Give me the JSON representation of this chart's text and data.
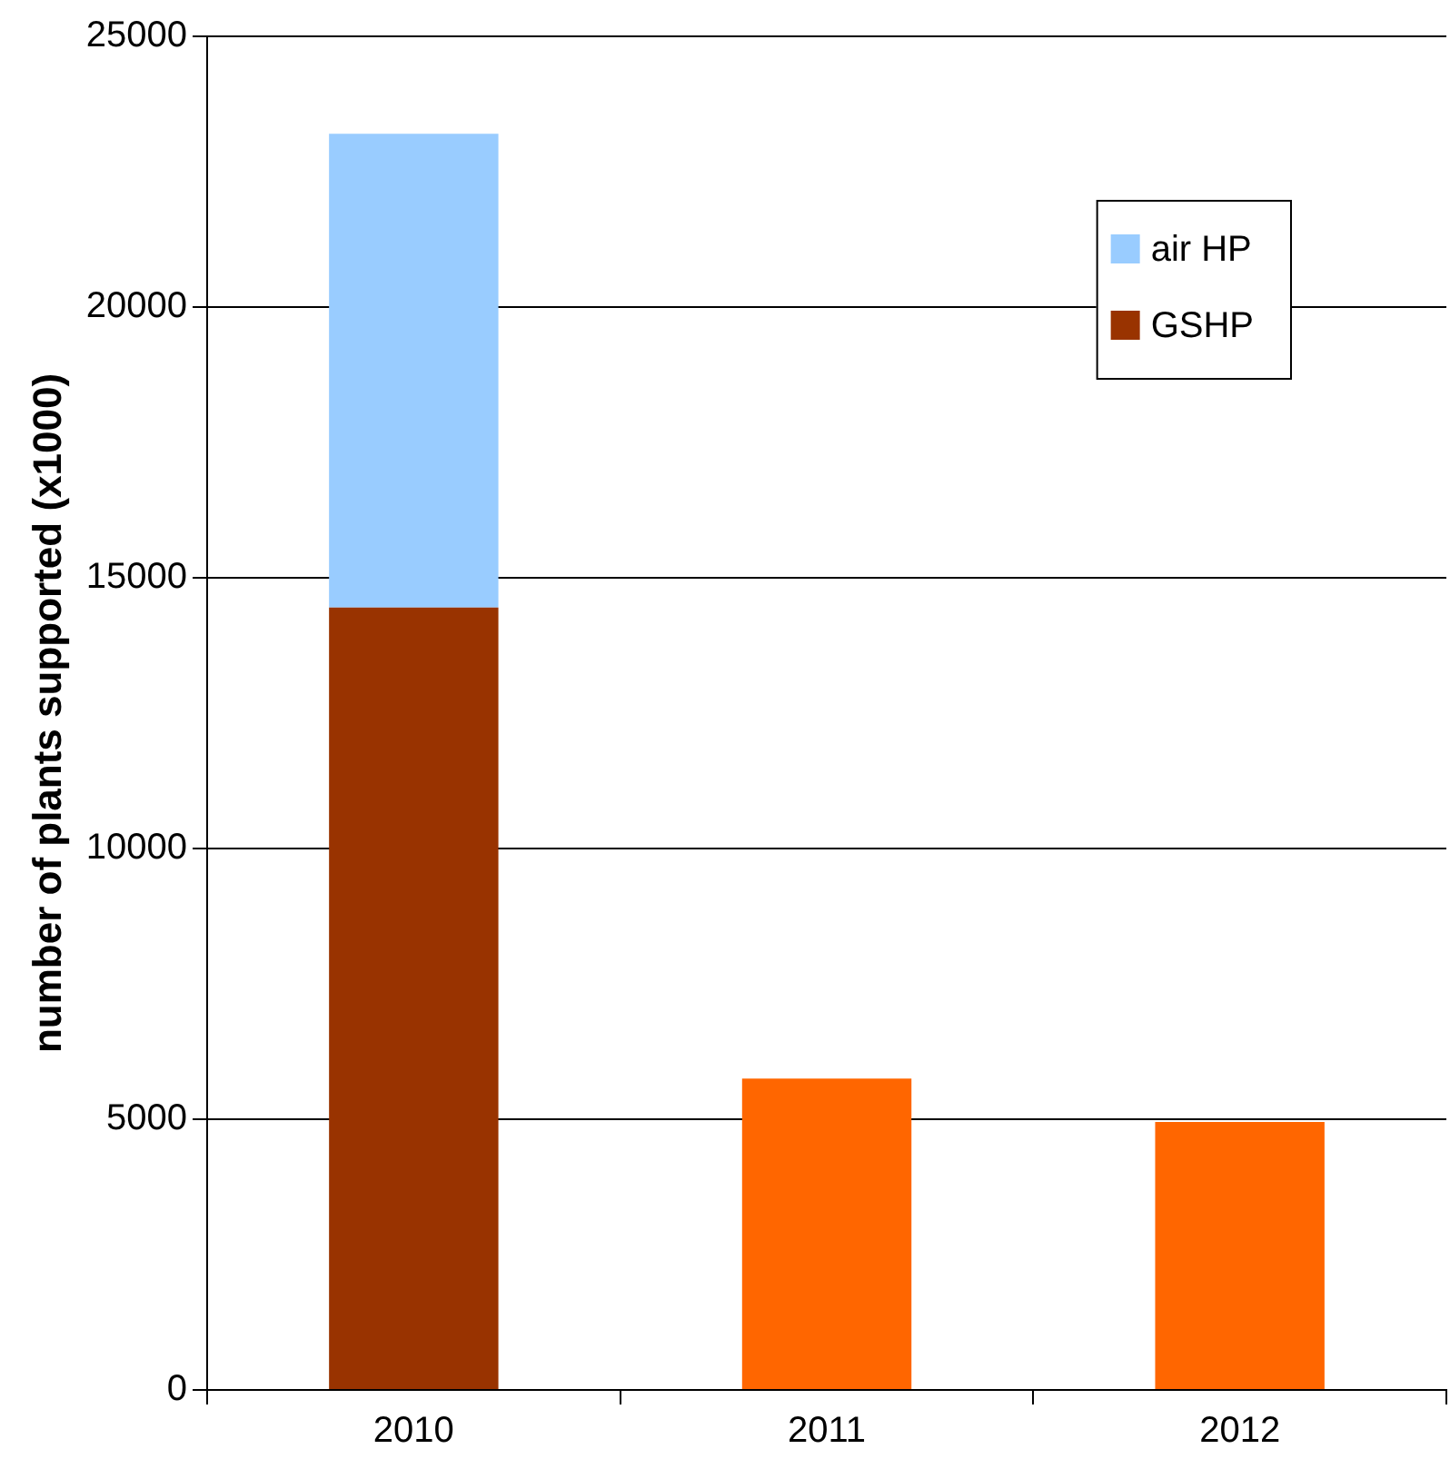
{
  "chart_data": {
    "type": "bar",
    "ylabel": "number of plants supported (x1000)",
    "categories": [
      "2010",
      "2011",
      "2012"
    ],
    "series": [
      {
        "name": "GSHP",
        "color": "#993300",
        "values": [
          14450,
          null,
          null
        ]
      },
      {
        "name": "air HP",
        "color": "#99ccff",
        "values": [
          8750,
          null,
          null
        ]
      },
      {
        "color": "#ff6600",
        "values": [
          null,
          5750,
          4950
        ]
      }
    ],
    "stacked": true,
    "ylim": [
      0,
      25000
    ],
    "yticks": [
      0,
      5000,
      10000,
      15000,
      20000,
      25000
    ],
    "grid": "y",
    "legend": "top right"
  }
}
